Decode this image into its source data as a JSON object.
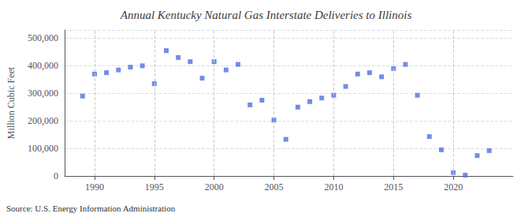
{
  "chart_data": {
    "type": "scatter",
    "title": "Annual Kentucky Natural Gas Interstate Deliveries to Illinois",
    "ylabel": "Million Cubic Feet",
    "annotation": "Source: U.S. Energy Information Administration",
    "x": [
      1989,
      1990,
      1991,
      1992,
      1993,
      1994,
      1995,
      1996,
      1997,
      1998,
      1999,
      2000,
      2001,
      2002,
      2003,
      2004,
      2005,
      2006,
      2007,
      2008,
      2009,
      2010,
      2011,
      2012,
      2013,
      2014,
      2015,
      2016,
      2017,
      2018,
      2019,
      2020,
      2021,
      2022,
      2023
    ],
    "values": [
      290000,
      370000,
      375000,
      385000,
      395000,
      400000,
      335000,
      455000,
      430000,
      415000,
      355000,
      415000,
      385000,
      405000,
      258000,
      275000,
      203000,
      133000,
      250000,
      270000,
      283000,
      293000,
      325000,
      370000,
      375000,
      360000,
      390000,
      405000,
      293000,
      143000,
      95000,
      12000,
      3000,
      74000,
      92000
    ],
    "xlim": [
      1987.5,
      2025
    ],
    "xticks": [
      1990,
      1995,
      2000,
      2005,
      2010,
      2015,
      2020
    ],
    "ylim": [
      0,
      530000
    ],
    "yticks": [
      {
        "value": 0,
        "label": "0"
      },
      {
        "value": 100000,
        "label": "100,000"
      },
      {
        "value": 200000,
        "label": "200,000"
      },
      {
        "value": 300000,
        "label": "300,000"
      },
      {
        "value": 400000,
        "label": "400,000"
      },
      {
        "value": 500000,
        "label": "500,000"
      }
    ],
    "marker": "square",
    "grid": true
  }
}
